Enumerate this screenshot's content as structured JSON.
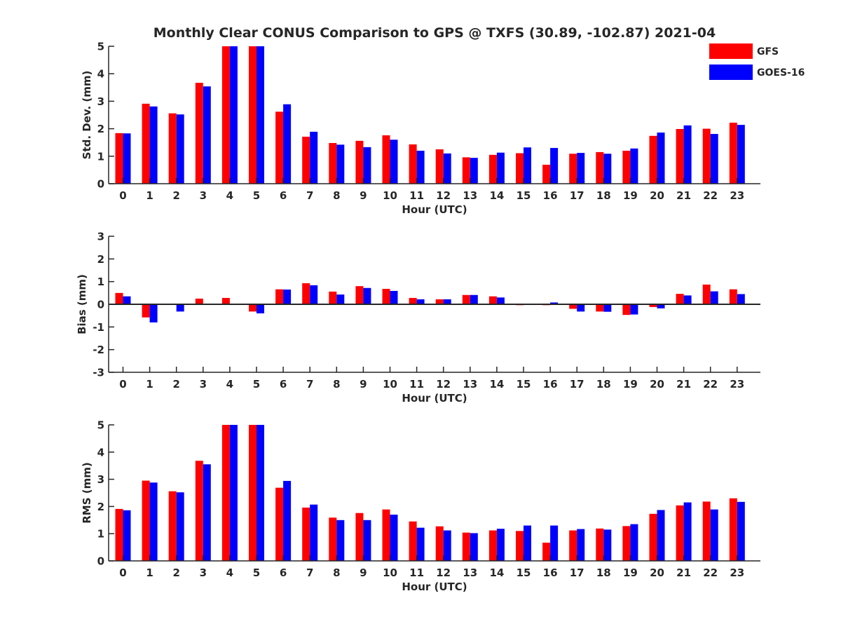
{
  "title": "Monthly Clear CONUS Comparison to GPS @ TXFS (30.89, -102.87) 2021-04",
  "legend": {
    "placement": "top-right",
    "entries": [
      {
        "name": "GFS",
        "color": "#ff0000"
      },
      {
        "name": "GOES-16",
        "color": "#0000ff"
      }
    ]
  },
  "chart_data": [
    {
      "type": "bar",
      "id": "std",
      "categories": [
        "0",
        "1",
        "2",
        "3",
        "4",
        "5",
        "6",
        "7",
        "8",
        "9",
        "10",
        "11",
        "12",
        "13",
        "14",
        "15",
        "16",
        "17",
        "18",
        "19",
        "20",
        "21",
        "22",
        "23"
      ],
      "xlabel": "Hour (UTC)",
      "ylabel": "Std. Dev. (mm)",
      "ylim": [
        0,
        5
      ],
      "yticks": [
        "0",
        "1",
        "2",
        "3",
        "4",
        "5"
      ],
      "series": [
        {
          "name": "GFS",
          "color": "#ff0000",
          "values": [
            1.84,
            2.91,
            2.56,
            3.67,
            5.0,
            5.0,
            2.62,
            1.71,
            1.48,
            1.56,
            1.76,
            1.43,
            1.25,
            0.96,
            1.05,
            1.11,
            0.69,
            1.09,
            1.15,
            1.2,
            1.74,
            1.99,
            2.0,
            2.22
          ]
        },
        {
          "name": "GOES-16",
          "color": "#0000ff",
          "values": [
            1.83,
            2.81,
            2.52,
            3.54,
            5.0,
            5.0,
            2.89,
            1.89,
            1.42,
            1.33,
            1.6,
            1.2,
            1.1,
            0.94,
            1.13,
            1.32,
            1.3,
            1.12,
            1.09,
            1.28,
            1.86,
            2.12,
            1.81,
            2.14
          ]
        }
      ],
      "grid": false
    },
    {
      "type": "bar",
      "id": "bias",
      "categories": [
        "0",
        "1",
        "2",
        "3",
        "4",
        "5",
        "6",
        "7",
        "8",
        "9",
        "10",
        "11",
        "12",
        "13",
        "14",
        "15",
        "16",
        "17",
        "18",
        "19",
        "20",
        "21",
        "22",
        "23"
      ],
      "xlabel": "Hour (UTC)",
      "ylabel": "Bias (mm)",
      "ylim": [
        -3,
        3
      ],
      "yticks": [
        "-3",
        "-2",
        "-1",
        "0",
        "1",
        "2",
        "3"
      ],
      "series": [
        {
          "name": "GFS",
          "color": "#ff0000",
          "values": [
            0.5,
            -0.58,
            0.0,
            0.25,
            0.28,
            -0.32,
            0.66,
            0.93,
            0.56,
            0.8,
            0.68,
            0.28,
            0.22,
            0.41,
            0.35,
            -0.04,
            -0.04,
            -0.2,
            -0.32,
            -0.47,
            -0.12,
            0.46,
            0.87,
            0.66
          ]
        },
        {
          "name": "GOES-16",
          "color": "#0000ff",
          "values": [
            0.35,
            -0.8,
            -0.32,
            -0.03,
            0.0,
            -0.4,
            0.65,
            0.84,
            0.43,
            0.72,
            0.59,
            0.22,
            0.22,
            0.41,
            0.3,
            0.0,
            0.08,
            -0.32,
            -0.33,
            -0.45,
            -0.18,
            0.39,
            0.57,
            0.45
          ]
        }
      ],
      "grid": false
    },
    {
      "type": "bar",
      "id": "rms",
      "categories": [
        "0",
        "1",
        "2",
        "3",
        "4",
        "5",
        "6",
        "7",
        "8",
        "9",
        "10",
        "11",
        "12",
        "13",
        "14",
        "15",
        "16",
        "17",
        "18",
        "19",
        "20",
        "21",
        "22",
        "23"
      ],
      "xlabel": "Hour (UTC)",
      "ylabel": "RMS (mm)",
      "ylim": [
        0,
        5
      ],
      "yticks": [
        "0",
        "1",
        "2",
        "3",
        "4",
        "5"
      ],
      "series": [
        {
          "name": "GFS",
          "color": "#ff0000",
          "values": [
            1.91,
            2.95,
            2.56,
            3.68,
            5.0,
            5.0,
            2.69,
            1.96,
            1.59,
            1.76,
            1.89,
            1.45,
            1.27,
            1.04,
            1.12,
            1.1,
            0.67,
            1.12,
            1.19,
            1.28,
            1.73,
            2.04,
            2.18,
            2.3
          ]
        },
        {
          "name": "GOES-16",
          "color": "#0000ff",
          "values": [
            1.86,
            2.88,
            2.52,
            3.55,
            5.0,
            5.0,
            2.94,
            2.07,
            1.5,
            1.5,
            1.7,
            1.22,
            1.12,
            1.02,
            1.18,
            1.3,
            1.3,
            1.17,
            1.15,
            1.35,
            1.87,
            2.15,
            1.89,
            2.17
          ]
        }
      ],
      "grid": false
    }
  ]
}
